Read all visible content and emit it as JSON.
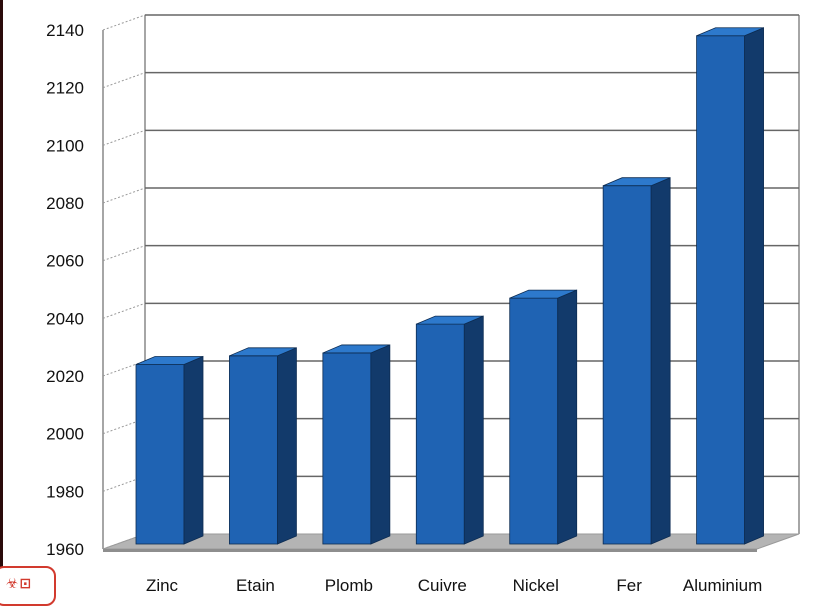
{
  "chart_data": {
    "type": "bar",
    "style": "3d",
    "categories": [
      "Zinc",
      "Etain",
      "Plomb",
      "Cuivre",
      "Nickel",
      "Fer",
      "Aluminium"
    ],
    "values": [
      2024,
      2027,
      2028,
      2038,
      2047,
      2086,
      2138
    ],
    "yticks": [
      1960,
      1980,
      2000,
      2020,
      2040,
      2060,
      2080,
      2100,
      2120,
      2140
    ],
    "ylim": [
      1960,
      2140
    ],
    "grid": true,
    "legend": "none",
    "colors": {
      "bar_front": "#1f63b3",
      "bar_side": "#123a6b",
      "bar_top": "#2d79cc",
      "floor": "#b4b4b4",
      "grid": "#666666",
      "wall": "#888888"
    }
  },
  "badge": {
    "icon": "logo-stamp-icon",
    "text": "☣⊡"
  }
}
